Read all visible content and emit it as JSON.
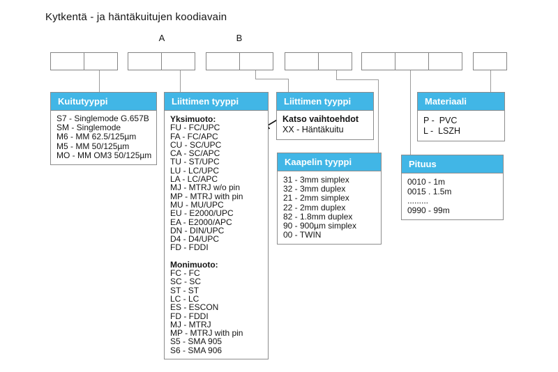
{
  "title": "Kytkentä - ja häntäkuitujen koodiavain",
  "position_labels": [
    "A",
    "B"
  ],
  "code_groups": [
    {
      "cells": 2
    },
    {
      "cells": 2
    },
    {
      "cells": 2
    },
    {
      "cells": 2
    },
    {
      "cells": 3
    },
    {
      "cells": 1
    }
  ],
  "boxes": {
    "kuitutyyppi": {
      "header": "Kuitutyyppi",
      "items": [
        "S7 - Singlemode G.657B",
        "SM - Singlemode",
        "M6 - MM 62.5/125µm",
        "M5 - MM 50/125µm",
        "MO - MM OM3 50/125µm"
      ]
    },
    "liitin_a": {
      "header": "Liittimen tyyppi",
      "sm_heading": "Yksimuoto:",
      "sm_items": [
        "FU - FC/UPC",
        "FA - FC/APC",
        "CU - SC/UPC",
        "CA - SC/APC",
        "TU - ST/UPC",
        "LU - LC/UPC",
        "LA - LC/APC",
        "MJ - MTRJ w/o pin",
        "MP - MTRJ with pin",
        "MU - MU/UPC",
        "EU - E2000/UPC",
        "EA - E2000/APC",
        "DN - DIN/UPC",
        "D4 - D4/UPC",
        "FD - FDDI"
      ],
      "mm_heading": "Monimuoto:",
      "mm_items": [
        "FC - FC",
        "SC - SC",
        "ST - ST",
        "LC - LC",
        "ES - ESCON",
        "FD - FDDI",
        "MJ - MTRJ",
        "MP - MTRJ with pin",
        "S5 - SMA 905",
        "S6 - SMA 906"
      ]
    },
    "liitin_b": {
      "header": "Liittimen tyyppi",
      "note_bold": "Katso vaihtoehdot",
      "note": "XX - Häntäkuitu"
    },
    "kaapeli": {
      "header": "Kaapelin tyyppi",
      "items": [
        "31 - 3mm simplex",
        "32 - 3mm duplex",
        "21 - 2mm simplex",
        "22 - 2mm duplex",
        "82 - 1.8mm duplex",
        "90 - 900µm simplex",
        "00 - TWIN"
      ]
    },
    "materiaali": {
      "header": "Materiaali",
      "items": [
        "P -  PVC",
        "L -  LSZH"
      ]
    },
    "pituus": {
      "header": "Pituus",
      "items": [
        "0010 - 1m",
        "0015 . 1.5m",
        ".........",
        "0990 - 99m"
      ]
    }
  },
  "colors": {
    "header_bg": "#41b6e6",
    "box_border": "#8c8c8c",
    "cell_border": "#848484",
    "connector_line": "#9b9b9b",
    "arrow": "#141414",
    "text": "#141414"
  }
}
